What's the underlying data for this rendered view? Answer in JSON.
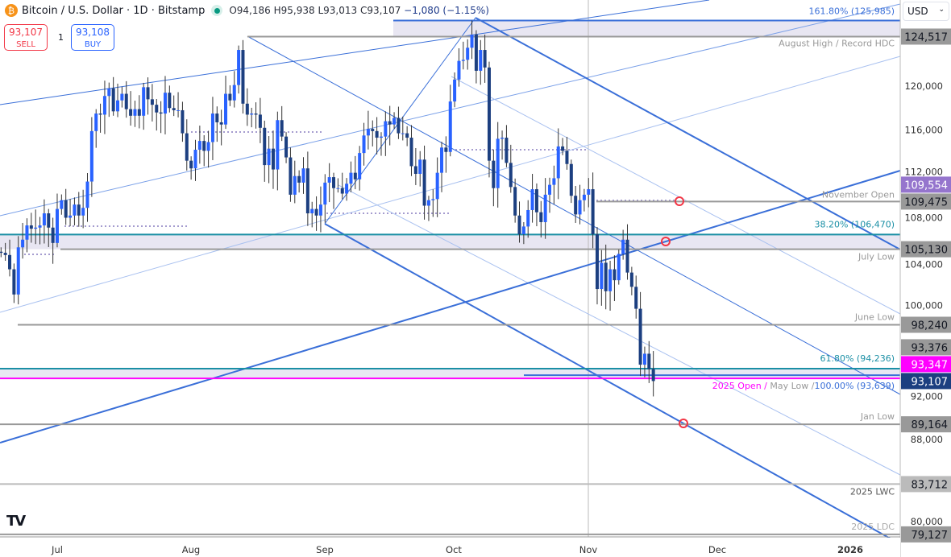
{
  "header": {
    "symbol": "Bitcoin / U.S. Dollar · 1D · Bitstamp",
    "open": "O94,186",
    "high": "H95,938",
    "low": "L93,013",
    "close": "C93,107",
    "change": "−1,080 (−1.15%)",
    "icon": "bitcoin-icon"
  },
  "trade": {
    "sell_price": "93,107",
    "sell_label": "SELL",
    "buy_price": "93,108",
    "buy_label": "BUY",
    "quantity": "1"
  },
  "currency": "USD",
  "colors": {
    "up": "#2962ff",
    "down": "#1c3f80",
    "accent": "#3a6fd8",
    "teal": "#1a8fa5",
    "magenta": "#ff00ff",
    "zone": "#e8e6f2"
  },
  "chart_data": {
    "type": "candlestick",
    "start_date": "2025-06-18",
    "interval": "1D",
    "closes": [
      104.8,
      104.6,
      103.3,
      101.0,
      105.3,
      106.0,
      107.3,
      107.0,
      107.1,
      107.3,
      108.4,
      107.1,
      105.7,
      108.8,
      109.6,
      108.0,
      108.2,
      109.2,
      108.2,
      108.9,
      111.3,
      115.9,
      117.5,
      117.4,
      119.1,
      119.8,
      117.7,
      118.7,
      119.3,
      117.9,
      117.3,
      117.9,
      117.3,
      119.9,
      118.8,
      118.3,
      117.6,
      117.5,
      119.4,
      118.0,
      117.8,
      117.8,
      115.7,
      113.2,
      112.5,
      114.2,
      115.0,
      114.1,
      114.9,
      117.5,
      116.7,
      116.5,
      119.3,
      118.7,
      120.1,
      123.3,
      118.4,
      117.4,
      117.5,
      117.4,
      116.2,
      112.8,
      114.3,
      112.4,
      116.9,
      115.4,
      113.5,
      110.1,
      111.8,
      111.2,
      112.5,
      108.4,
      108.8,
      108.2,
      109.2,
      111.2,
      111.7,
      110.7,
      110.7,
      110.2,
      111.1,
      112.1,
      111.5,
      113.9,
      115.5,
      116.1,
      115.9,
      115.3,
      115.4,
      116.8,
      116.5,
      117.1,
      115.7,
      115.7,
      115.3,
      112.7,
      112.0,
      113.3,
      109.1,
      109.6,
      109.7,
      112.1,
      114.4,
      114.0,
      118.6,
      120.6,
      122.3,
      122.4,
      123.5,
      124.7,
      121.4,
      123.3,
      121.7,
      113.2,
      110.7,
      115.2,
      115.3,
      113.0,
      110.8,
      108.2,
      106.5,
      107.2,
      108.7,
      110.6,
      108.5,
      107.6,
      110.1,
      111.0,
      111.6,
      114.5,
      114.1,
      112.9,
      110.0,
      108.3,
      109.6,
      110.1,
      110.6,
      106.5,
      101.5,
      103.9,
      101.3,
      103.3,
      102.3,
      104.7,
      106.0,
      103.0,
      101.7,
      99.7,
      94.6,
      95.6,
      94.2,
      93.107
    ],
    "close_units": "thousand USD",
    "x_ticks": [
      "Jul",
      "Aug",
      "Sep",
      "Oct",
      "Nov",
      "Dec",
      "2026"
    ],
    "y_ticks": [
      "120,000",
      "116,000",
      "112,000",
      "108,000",
      "104,000",
      "100,000",
      "92,000",
      "88,000",
      "80,000"
    ],
    "levels": [
      {
        "name": "161.80% (125,985)",
        "value": 125985,
        "color": "#3a6fd8"
      },
      {
        "name": "August High / Record HDC",
        "value": 124517,
        "badge": "124,517",
        "color": "#999"
      },
      {
        "name": "November Open",
        "value": 109475,
        "badge": "109,475",
        "color": "#999"
      },
      {
        "name": "38.20% (106,470)",
        "value": 106470,
        "color": "#1a8fa5"
      },
      {
        "name": "July Low",
        "value": 105130,
        "badge": "105,130",
        "color": "#999"
      },
      {
        "name": "June Low",
        "value": 98240,
        "badge": "98,240",
        "color": "#999"
      },
      {
        "name": "61.80% (94,236)",
        "value": 94236,
        "color": "#1a8fa5"
      },
      {
        "name": "100.00% (93,639)",
        "value": 93639,
        "color": "#3a6fd8"
      },
      {
        "name": "2025 Open /",
        "value": 93347,
        "badge": "93,347",
        "color": "#ff00ff"
      },
      {
        "name": "May Low /",
        "value": 93347,
        "color": "#999"
      },
      {
        "name": "Jan Low",
        "value": 89164,
        "badge": "89,164",
        "color": "#999"
      },
      {
        "name": "2025 LWC",
        "value": 83712,
        "badge": "83,712",
        "color": "#bbb"
      },
      {
        "name": "2025 LDC",
        "value": 79127,
        "badge": "79,127",
        "color": "#999"
      }
    ],
    "badges": [
      {
        "text": "109,554",
        "value": 109554,
        "color": "#9575cd"
      },
      {
        "text": "93,376",
        "value": 93376,
        "color": "#999"
      },
      {
        "text": "93,107",
        "value": 93107,
        "color": "#1c3f80"
      }
    ]
  }
}
